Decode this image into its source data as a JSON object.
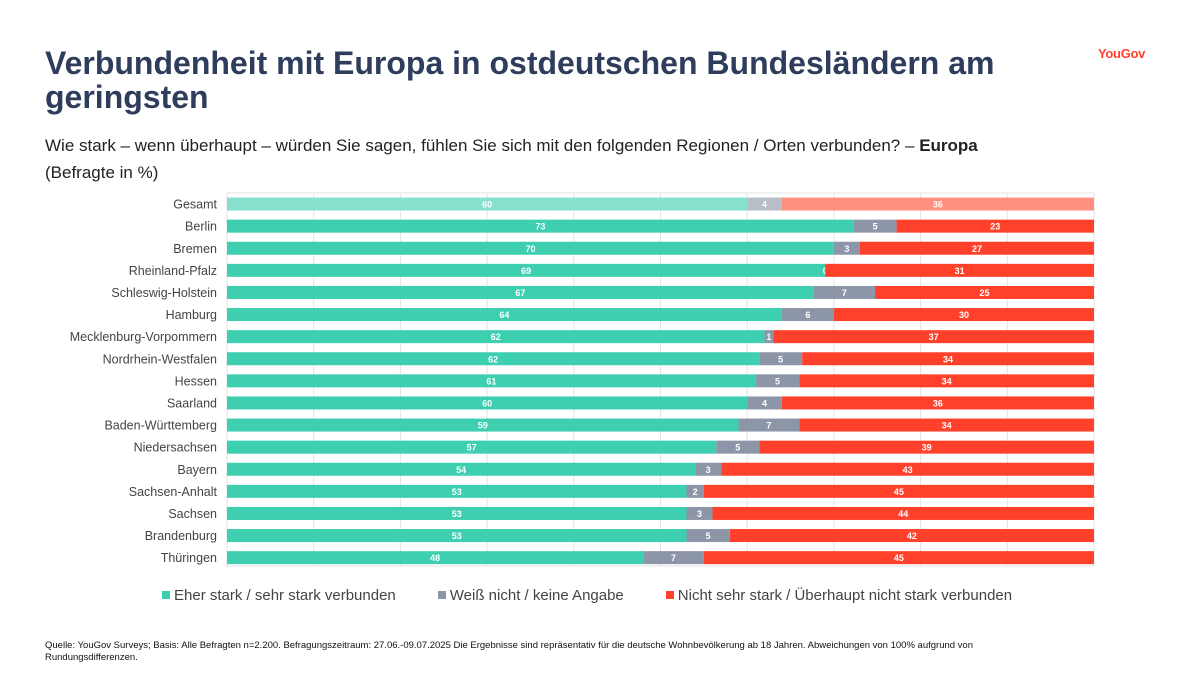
{
  "title": "Verbundenheit mit Europa in ostdeutschen Bundesländern am geringsten",
  "logo": "YouGov",
  "subtitle": {
    "question": "Wie stark – wenn überhaupt – würden Sie sagen, fühlen Sie sich mit den folgenden Regionen / Orten verbunden? –",
    "emphasis": "Europa",
    "note": "(Befragte in %)"
  },
  "footer": "Quelle: YouGov Surveys; Basis: Alle Befragten n=2.200. Befragungszeitraum: 27.06.-09.07.2025 Die Ergebnisse sind repräsentativ für die deutsche Wohnbevölkerung ab 18 Jahren. Abweichungen von 100% aufgrund von Rundungsdifferenzen.",
  "colors": {
    "strong": "#3dcfaf",
    "strong_light": "#87e0cb",
    "unknown": "#8c96a8",
    "unknown_light": "#b8bec8",
    "weak": "#ff412c",
    "weak_light": "#ff8f80"
  },
  "chart_data": {
    "type": "bar",
    "orientation": "horizontal",
    "stacked": true,
    "xlim": [
      0,
      100
    ],
    "grid": true,
    "legend_position": "bottom",
    "categories": [
      "Gesamt",
      "Berlin",
      "Bremen",
      "Rheinland-Pfalz",
      "Schleswig-Holstein",
      "Hamburg",
      "Mecklenburg-Vorpommern",
      "Nordrhein-Westfalen",
      "Hessen",
      "Saarland",
      "Baden-Württemberg",
      "Niedersachsen",
      "Bayern",
      "Sachsen-Anhalt",
      "Sachsen",
      "Brandenburg",
      "Thüringen"
    ],
    "series": [
      {
        "name": "Eher stark / sehr stark verbunden",
        "values": [
          60,
          73,
          70,
          69,
          67,
          64,
          62,
          62,
          61,
          60,
          59,
          57,
          54,
          53,
          53,
          53,
          48
        ]
      },
      {
        "name": "Weiß nicht / keine Angabe",
        "values": [
          4,
          5,
          3,
          0,
          7,
          6,
          1,
          5,
          5,
          4,
          7,
          5,
          3,
          2,
          3,
          5,
          7
        ]
      },
      {
        "name": "Nicht sehr stark / Überhaupt nicht stark verbunden",
        "values": [
          36,
          23,
          27,
          31,
          25,
          30,
          37,
          34,
          34,
          36,
          34,
          39,
          43,
          45,
          44,
          42,
          45
        ]
      }
    ]
  }
}
